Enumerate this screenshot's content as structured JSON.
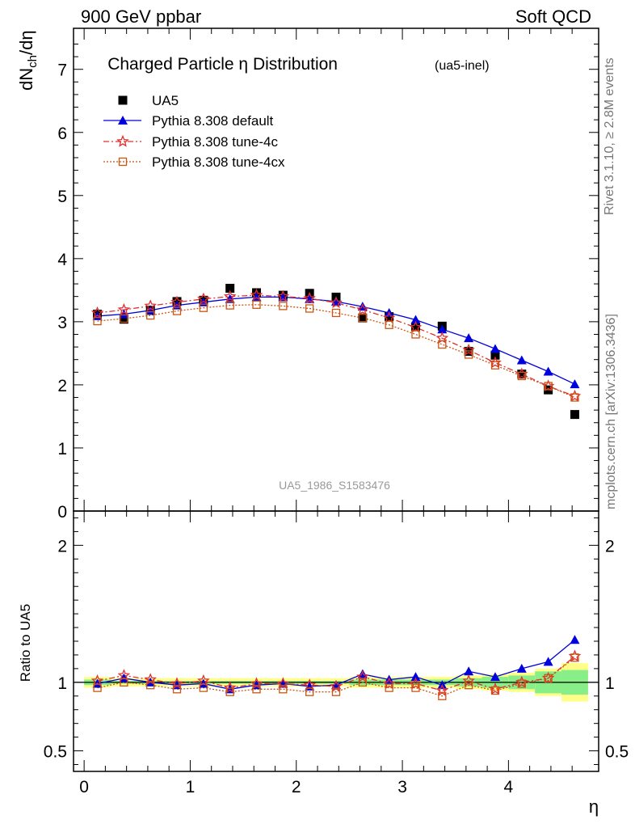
{
  "header": {
    "left": "900 GeV ppbar",
    "right": "Soft QCD"
  },
  "side_labels": {
    "rivet": "Rivet 3.1.10, ≥ 2.8M events",
    "mcplots": "mcplots.cern.ch [arXiv:1306.3436]"
  },
  "colors": {
    "data": "#000000",
    "default": "#0000dd",
    "tune4c": "#e03030",
    "tune4cx": "#cc5511",
    "band_inner": "#88ee88",
    "band_outer": "#ffff88"
  },
  "chart_data": [
    {
      "type": "scatter",
      "title": "Charged Particle η Distribution",
      "title_sub": "(ua5-inel)",
      "ylabel": "dN_ch/dη",
      "ylabel_main": "dN",
      "ylabel_sub": "ch",
      "ylabel_tail": "/dη",
      "watermark": "UA5_1986_S1583476",
      "xlim": [
        -0.1,
        4.85
      ],
      "ylim": [
        0,
        7.65
      ],
      "yticks": [
        0,
        1,
        2,
        3,
        4,
        5,
        6,
        7
      ],
      "ytick_labels": [
        "0",
        "1",
        "2",
        "3",
        "4",
        "5",
        "6",
        "7"
      ],
      "legend_position": "top-left",
      "x": [
        0.125,
        0.375,
        0.625,
        0.875,
        1.125,
        1.375,
        1.625,
        1.875,
        2.125,
        2.375,
        2.625,
        2.875,
        3.125,
        3.375,
        3.625,
        3.875,
        4.125,
        4.375,
        4.625
      ],
      "series": [
        {
          "name": "UA5",
          "key": "data",
          "marker": "square",
          "values": [
            3.12,
            3.04,
            3.18,
            3.32,
            3.34,
            3.53,
            3.46,
            3.42,
            3.45,
            3.39,
            3.06,
            3.08,
            2.92,
            2.93,
            2.53,
            2.47,
            2.17,
            1.92,
            1.53
          ]
        },
        {
          "name": "Pythia 8.308 default",
          "key": "default",
          "marker": "triangle",
          "values": [
            3.09,
            3.12,
            3.18,
            3.26,
            3.31,
            3.36,
            3.39,
            3.39,
            3.36,
            3.32,
            3.24,
            3.14,
            3.03,
            2.88,
            2.74,
            2.57,
            2.39,
            2.21,
            2.01
          ]
        },
        {
          "name": "Pythia 8.308 tune-4c",
          "key": "tune4c",
          "marker": "star",
          "values": [
            3.14,
            3.19,
            3.25,
            3.31,
            3.36,
            3.4,
            3.42,
            3.4,
            3.37,
            3.3,
            3.19,
            3.06,
            2.91,
            2.74,
            2.55,
            2.35,
            2.17,
            1.98,
            1.82
          ]
        },
        {
          "name": "Pythia 8.308 tune-4cx",
          "key": "tune4cx",
          "marker": "open-square",
          "values": [
            3.01,
            3.05,
            3.1,
            3.17,
            3.22,
            3.26,
            3.27,
            3.25,
            3.21,
            3.14,
            3.06,
            2.95,
            2.8,
            2.64,
            2.48,
            2.31,
            2.14,
            1.98,
            1.8
          ]
        }
      ]
    },
    {
      "type": "scatter",
      "ylabel": "Ratio to UA5",
      "xlabel": "η",
      "xlim": [
        -0.1,
        4.85
      ],
      "ylim": [
        0.35,
        2.25
      ],
      "xticks": [
        0,
        1,
        2,
        3,
        4
      ],
      "xtick_labels": [
        "0",
        "1",
        "2",
        "3",
        "4"
      ],
      "yticks": [
        0.5,
        1,
        2
      ],
      "ytick_labels": [
        "0.5",
        "1",
        "2"
      ],
      "x": [
        0.125,
        0.375,
        0.625,
        0.875,
        1.125,
        1.375,
        1.625,
        1.875,
        2.125,
        2.375,
        2.625,
        2.875,
        3.125,
        3.375,
        3.625,
        3.875,
        4.125,
        4.375,
        4.625
      ],
      "band_outer": [
        0.04,
        0.03,
        0.03,
        0.03,
        0.03,
        0.03,
        0.03,
        0.03,
        0.03,
        0.03,
        0.04,
        0.04,
        0.04,
        0.04,
        0.05,
        0.06,
        0.07,
        0.1,
        0.14
      ],
      "band_inner": [
        0.02,
        0.01,
        0.01,
        0.01,
        0.01,
        0.01,
        0.01,
        0.01,
        0.01,
        0.01,
        0.02,
        0.02,
        0.02,
        0.02,
        0.03,
        0.04,
        0.05,
        0.08,
        0.09
      ],
      "series": [
        {
          "name": "Pythia 8.308 default",
          "key": "default",
          "marker": "triangle",
          "values": [
            0.99,
            1.03,
            1.0,
            0.98,
            0.99,
            0.95,
            0.98,
            0.99,
            0.97,
            0.98,
            1.06,
            1.02,
            1.04,
            0.98,
            1.08,
            1.04,
            1.1,
            1.15,
            1.31
          ]
        },
        {
          "name": "Pythia 8.308 tune-4c",
          "key": "tune4c",
          "marker": "star",
          "values": [
            1.01,
            1.05,
            1.02,
            0.99,
            1.01,
            0.96,
            0.99,
            0.99,
            0.98,
            0.97,
            1.04,
            0.99,
            0.99,
            0.94,
            1.01,
            0.95,
            1.0,
            1.03,
            1.19
          ]
        },
        {
          "name": "Pythia 8.308 tune-4cx",
          "key": "tune4cx",
          "marker": "open-square",
          "values": [
            0.96,
            1.0,
            0.98,
            0.95,
            0.96,
            0.93,
            0.95,
            0.95,
            0.93,
            0.93,
            1.0,
            0.96,
            0.96,
            0.9,
            0.98,
            0.94,
            0.99,
            1.03,
            1.18
          ]
        }
      ]
    }
  ]
}
